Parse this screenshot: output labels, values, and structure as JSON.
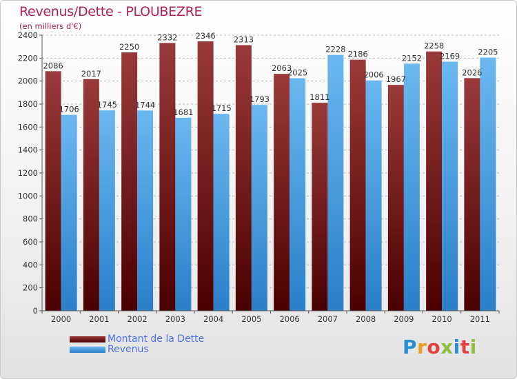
{
  "title": "Revenus/Dette - PLOUBEZRE",
  "subtitle": "(en milliers d'€)",
  "logo": {
    "text": "Proxiti",
    "letter_colors": [
      "#2a8fd0",
      "#e8a020",
      "#e04040",
      "#8cc040",
      "#2a8fd0",
      "#e04040",
      "#8cc040"
    ]
  },
  "colors": {
    "dette": "#7a1a1a",
    "revenus": "#4aa3e6",
    "axis": "#555555",
    "grid": "#bbbbbb",
    "title": "#b0205a",
    "legend_text": "#4a6fe0"
  },
  "chart_data": {
    "type": "bar",
    "categories": [
      "2000",
      "2001",
      "2002",
      "2003",
      "2004",
      "2005",
      "2006",
      "2007",
      "2008",
      "2009",
      "2010",
      "2011"
    ],
    "series": [
      {
        "name": "Montant de la Dette",
        "values": [
          2086,
          2017,
          2250,
          2332,
          2346,
          2313,
          2063,
          1811,
          2186,
          1967,
          2258,
          2026
        ]
      },
      {
        "name": "Revenus",
        "values": [
          1706,
          1745,
          1744,
          1681,
          1715,
          1793,
          2025,
          2228,
          2006,
          2152,
          2169,
          2205
        ]
      }
    ],
    "ylim": [
      0,
      2400
    ],
    "yticks": [
      0,
      200,
      400,
      600,
      800,
      1000,
      1200,
      1400,
      1600,
      1800,
      2000,
      2200,
      2400
    ],
    "grid": true,
    "legend": "bottom-left"
  }
}
